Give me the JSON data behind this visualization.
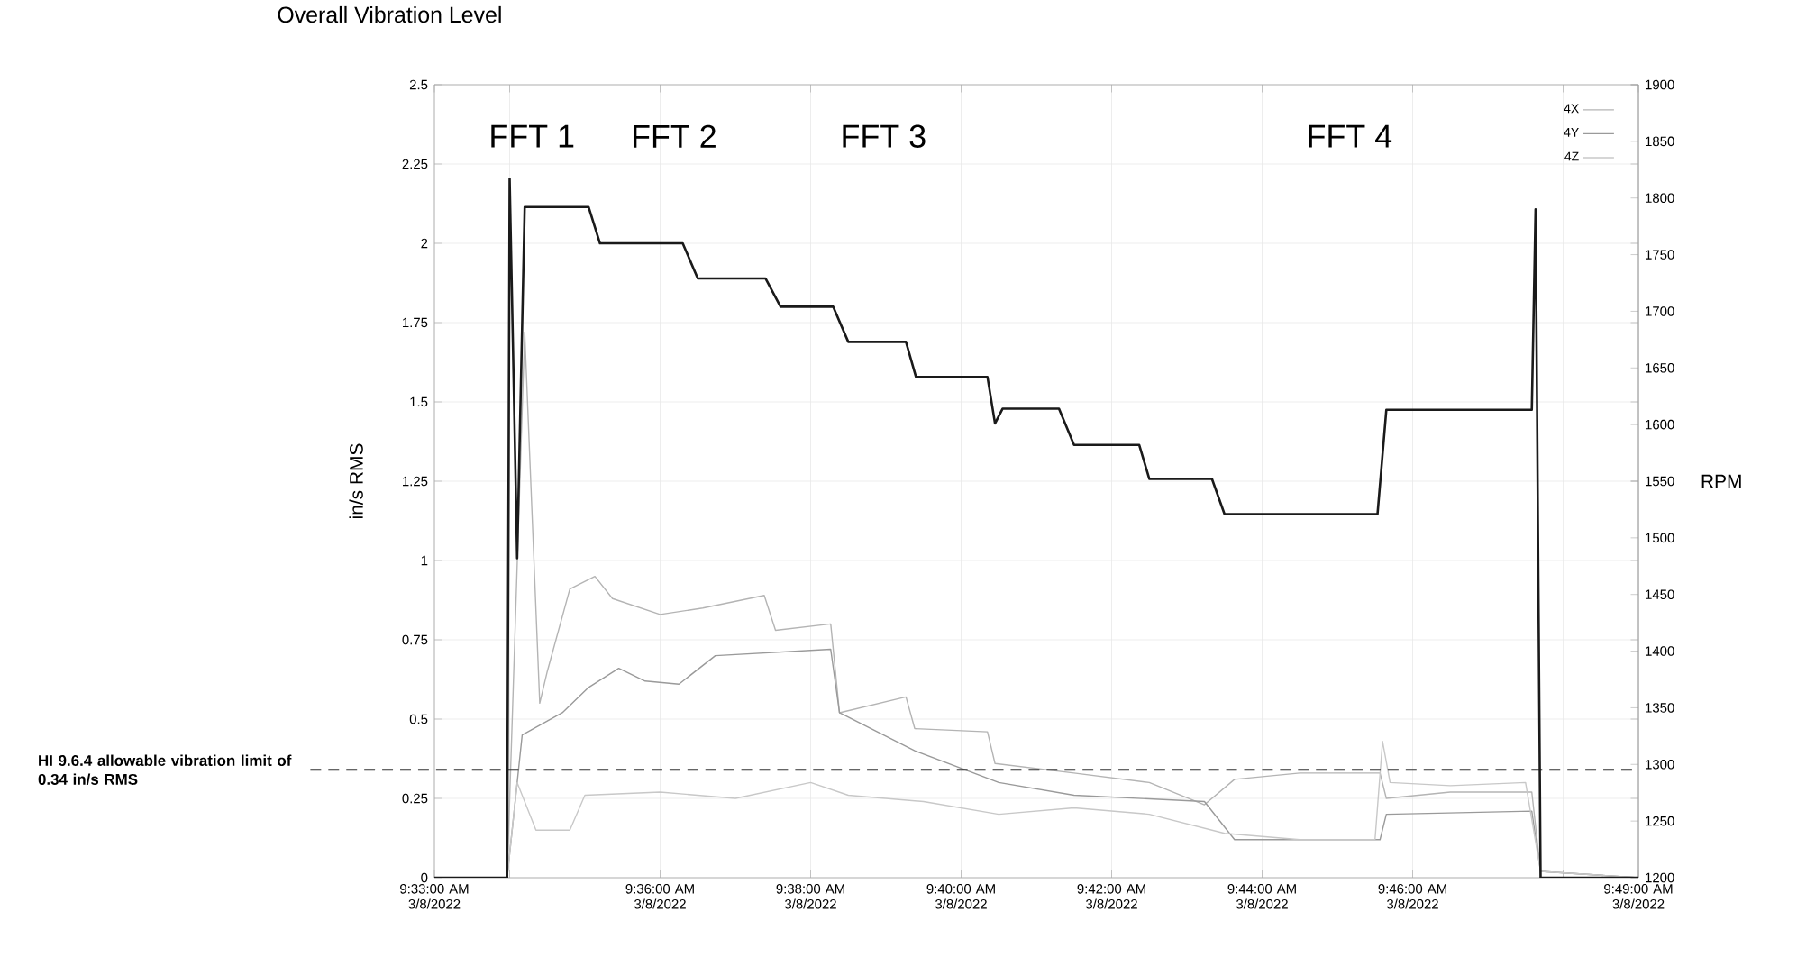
{
  "chart_data": {
    "type": "line",
    "title": "Overall Vibration Level",
    "ylabel": "in/s RMS",
    "y2label": "RPM",
    "xlim": [
      "2022-03-08T09:33",
      "2022-03-08T09:49"
    ],
    "xticks": [
      {
        "value": "2022-03-08T09:33",
        "label": "9:33:00 AM 3/8/2022"
      },
      {
        "value": "2022-03-08T09:34",
        "label": null
      },
      {
        "value": "2022-03-08T09:36",
        "label": "9:36:00 AM 3/8/2022"
      },
      {
        "value": "2022-03-08T09:38",
        "label": "9:38:00 AM 3/8/2022"
      },
      {
        "value": "2022-03-08T09:40",
        "label": "9:40:00 AM 3/8/2022"
      },
      {
        "value": "2022-03-08T09:42",
        "label": "9:42:00 AM 3/8/2022"
      },
      {
        "value": "2022-03-08T09:44",
        "label": "9:44:00 AM 3/8/2022"
      },
      {
        "value": "2022-03-08T09:46",
        "label": "9:46:00 AM 3/8/2022"
      },
      {
        "value": "2022-03-08T09:48",
        "label": null
      },
      {
        "value": "2022-03-08T09:49",
        "label": "9:49:00 AM 3/8/2022"
      }
    ],
    "ylim": [
      0,
      2.5
    ],
    "yticks": [
      0,
      0.25,
      0.5,
      0.75,
      1,
      1.25,
      1.5,
      1.75,
      2,
      2.25,
      2.5
    ],
    "y2lim": [
      1200,
      1900
    ],
    "y2ticks": [
      1200,
      1250,
      1300,
      1350,
      1400,
      1450,
      1500,
      1550,
      1600,
      1650,
      1700,
      1750,
      1800,
      1850,
      1900
    ],
    "grid": true,
    "legend": "top right",
    "series": [
      {
        "name": "4X",
        "color": "#b4b4b4",
        "x": [
          "2022-03-08T09:33:00",
          "2022-03-08T09:33:58",
          "2022-03-08T09:34:12",
          "2022-03-08T09:34:24",
          "2022-03-08T09:34:30",
          "2022-03-08T09:34:48",
          "2022-03-08T09:35:08",
          "2022-03-08T09:35:22",
          "2022-03-08T09:36:00",
          "2022-03-08T09:36:34",
          "2022-03-08T09:37:23",
          "2022-03-08T09:37:32",
          "2022-03-08T09:38:16",
          "2022-03-08T09:38:23",
          "2022-03-08T09:39:16",
          "2022-03-08T09:39:23",
          "2022-03-08T09:40:21",
          "2022-03-08T09:40:27",
          "2022-03-08T09:41:30",
          "2022-03-08T09:42:30",
          "2022-03-08T09:43:14",
          "2022-03-08T09:43:38",
          "2022-03-08T09:44:30",
          "2022-03-08T09:45:34",
          "2022-03-08T09:45:39",
          "2022-03-08T09:46:30",
          "2022-03-08T09:47:35",
          "2022-03-08T09:47:42",
          "2022-03-08T09:49:00"
        ],
        "values": [
          0,
          0,
          1.72,
          0.55,
          0.65,
          0.91,
          0.95,
          0.88,
          0.83,
          0.85,
          0.89,
          0.78,
          0.8,
          0.52,
          0.57,
          0.47,
          0.46,
          0.36,
          0.33,
          0.3,
          0.23,
          0.31,
          0.33,
          0.33,
          0.25,
          0.27,
          0.27,
          0.02,
          0
        ]
      },
      {
        "name": "4Y",
        "color": "#9a9a9a",
        "x": [
          "2022-03-08T09:33:00",
          "2022-03-08T09:33:58",
          "2022-03-08T09:34:10",
          "2022-03-08T09:34:42",
          "2022-03-08T09:35:03",
          "2022-03-08T09:35:27",
          "2022-03-08T09:35:48",
          "2022-03-08T09:36:15",
          "2022-03-08T09:36:44",
          "2022-03-08T09:38:16",
          "2022-03-08T09:38:23",
          "2022-03-08T09:39:23",
          "2022-03-08T09:40:30",
          "2022-03-08T09:41:30",
          "2022-03-08T09:43:14",
          "2022-03-08T09:43:38",
          "2022-03-08T09:45:34",
          "2022-03-08T09:45:39",
          "2022-03-08T09:47:35",
          "2022-03-08T09:47:42",
          "2022-03-08T09:49:00"
        ],
        "values": [
          0,
          0,
          0.45,
          0.52,
          0.6,
          0.66,
          0.62,
          0.61,
          0.7,
          0.72,
          0.52,
          0.4,
          0.3,
          0.26,
          0.24,
          0.12,
          0.12,
          0.2,
          0.21,
          0.02,
          0
        ]
      },
      {
        "name": "4Z",
        "color": "#c8c8c8",
        "x": [
          "2022-03-08T09:33:00",
          "2022-03-08T09:33:58",
          "2022-03-08T09:34:06",
          "2022-03-08T09:34:21",
          "2022-03-08T09:34:48",
          "2022-03-08T09:35:00",
          "2022-03-08T09:36:00",
          "2022-03-08T09:37:00",
          "2022-03-08T09:38:00",
          "2022-03-08T09:38:30",
          "2022-03-08T09:39:30",
          "2022-03-08T09:40:30",
          "2022-03-08T09:41:30",
          "2022-03-08T09:42:30",
          "2022-03-08T09:43:30",
          "2022-03-08T09:44:30",
          "2022-03-08T09:45:30",
          "2022-03-08T09:45:36",
          "2022-03-08T09:45:42",
          "2022-03-08T09:46:30",
          "2022-03-08T09:47:30",
          "2022-03-08T09:47:42",
          "2022-03-08T09:49:00"
        ],
        "values": [
          0,
          0,
          0.3,
          0.15,
          0.15,
          0.26,
          0.27,
          0.25,
          0.3,
          0.26,
          0.24,
          0.2,
          0.22,
          0.2,
          0.14,
          0.12,
          0.12,
          0.43,
          0.3,
          0.29,
          0.3,
          0.02,
          0
        ]
      },
      {
        "color": "#1a1a1a",
        "axis": "y2",
        "x": [
          "2022-03-08T09:33:00",
          "2022-03-08T09:33:58",
          "2022-03-08T09:34:00",
          "2022-03-08T09:34:06",
          "2022-03-08T09:34:12",
          "2022-03-08T09:35:03",
          "2022-03-08T09:35:12",
          "2022-03-08T09:36:18",
          "2022-03-08T09:36:30",
          "2022-03-08T09:37:24",
          "2022-03-08T09:37:36",
          "2022-03-08T09:38:18",
          "2022-03-08T09:38:30",
          "2022-03-08T09:39:16",
          "2022-03-08T09:39:24",
          "2022-03-08T09:40:21",
          "2022-03-08T09:40:27",
          "2022-03-08T09:40:33",
          "2022-03-08T09:41:18",
          "2022-03-08T09:41:30",
          "2022-03-08T09:42:22",
          "2022-03-08T09:42:30",
          "2022-03-08T09:43:20",
          "2022-03-08T09:43:30",
          "2022-03-08T09:45:32",
          "2022-03-08T09:45:39",
          "2022-03-08T09:47:35",
          "2022-03-08T09:47:38",
          "2022-03-08T09:47:42",
          "2022-03-08T09:49:00"
        ],
        "values": [
          1200,
          1200,
          1817,
          1482,
          1792,
          1792,
          1760,
          1760,
          1729,
          1729,
          1704,
          1704,
          1673,
          1673,
          1642,
          1642,
          1601,
          1614,
          1614,
          1582,
          1582,
          1552,
          1552,
          1521,
          1521,
          1613,
          1613,
          1790,
          1200,
          1200
        ]
      }
    ],
    "ref_lines": [
      {
        "axis": "y",
        "value": 0.34,
        "label": "HI 9.6.4 allowable vibration limit of 0.34 in/s RMS",
        "color": "#333333",
        "line_style": "dashed"
      }
    ],
    "annotations": [
      "FFT 1",
      "FFT 2",
      "FFT 3",
      "FFT 4"
    ]
  }
}
